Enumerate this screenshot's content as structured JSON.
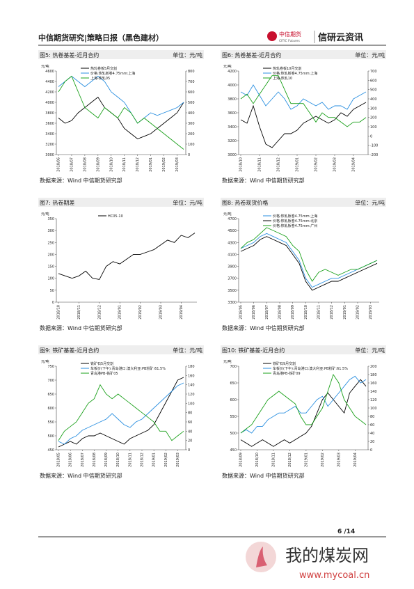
{
  "header": {
    "title": "中信期货研究|策略日报（黑色建材）",
    "logo_cn": "中信期货",
    "logo_en": "CITIC Futures",
    "brand": "信研云资讯"
  },
  "footer": {
    "page": "6 /14"
  },
  "watermark": {
    "cn": "我的煤炭网",
    "url": "www.mycoal.cn"
  },
  "chart_data": [
    {
      "type": "line",
      "title": "图5: 热卷基差-近月合约",
      "unit": "单位：元/吨",
      "y_label": "元/吨",
      "source": "数据来源：Wind  中信期货研究部",
      "categories": [
        "2018/06",
        null,
        "2018/07",
        null,
        "2018/08",
        null,
        "2018/09",
        null,
        "2018/10",
        null,
        "2018/11",
        null,
        "2018/12",
        null,
        "2019/01",
        null,
        "2019/02",
        null,
        "2019/03",
        null
      ],
      "ylim": [
        3000,
        4600
      ],
      "yticks": [
        3000,
        3200,
        3400,
        3600,
        3800,
        4000,
        4200,
        4400,
        4600
      ],
      "y2lim": [
        0,
        800
      ],
      "y2ticks": [
        0,
        100,
        200,
        300,
        400,
        500,
        600,
        700,
        800
      ],
      "series": [
        {
          "name": "热轧卷板5月交割",
          "color": "#000000",
          "values": [
            3700,
            3600,
            3650,
            3800,
            3900,
            4000,
            4100,
            3900,
            3800,
            3700,
            3500,
            3400,
            3300,
            3350,
            3400,
            3500,
            3600,
            3700,
            3800,
            4000
          ]
        },
        {
          "name": "价格:热轧板卷4.75mm:上海",
          "color": "#2a8fe0",
          "values": [
            4300,
            4400,
            4500,
            4400,
            4300,
            4400,
            4500,
            4400,
            4200,
            4100,
            4000,
            3800,
            3600,
            3700,
            3800,
            3750,
            3800,
            3850,
            3900,
            4000
          ]
        },
        {
          "name": "上海-热轧05",
          "color": "#1aa01a",
          "axis": "y2",
          "values": [
            600,
            700,
            750,
            600,
            450,
            400,
            350,
            450,
            400,
            350,
            450,
            400,
            300,
            350,
            300,
            250,
            200,
            150,
            100,
            50
          ]
        }
      ]
    },
    {
      "type": "line",
      "title": "图6: 热卷基差-近月合约",
      "unit": "单位：元/吨",
      "y_label": "元/吨",
      "source": "数据来源：Wind  中信期货研究部",
      "categories": [
        "2018/10",
        null,
        null,
        "2018/11",
        null,
        null,
        "2018/12",
        null,
        null,
        "2019/01",
        null,
        null,
        "2019/02",
        null,
        null,
        "2019/03",
        null,
        null,
        "2019/04",
        null,
        null
      ],
      "ylim": [
        3000,
        4200
      ],
      "yticks": [
        3000,
        3200,
        3400,
        3600,
        3800,
        4000,
        4200
      ],
      "y2lim": [
        -200,
        700
      ],
      "y2ticks": [
        -200,
        -100,
        0,
        100,
        200,
        300,
        400,
        500,
        600,
        700
      ],
      "series": [
        {
          "name": "热轧卷板10月交割",
          "color": "#000000",
          "values": [
            3500,
            3450,
            3700,
            3400,
            3150,
            3100,
            3200,
            3300,
            3300,
            3350,
            3450,
            3500,
            3550,
            3500,
            3450,
            3500,
            3600,
            3550,
            3650,
            3700,
            3750
          ]
        },
        {
          "name": "价格:热轧板卷4.75mm:上海",
          "color": "#2a8fe0",
          "values": [
            3900,
            3850,
            4000,
            3850,
            3700,
            3800,
            3900,
            3800,
            3650,
            3700,
            3800,
            3750,
            3700,
            3750,
            3650,
            3700,
            3700,
            3650,
            3800,
            3850,
            3900
          ]
        },
        {
          "name": "上海-热轧10",
          "color": "#1aa01a",
          "axis": "y2",
          "values": [
            400,
            450,
            350,
            450,
            550,
            650,
            650,
            500,
            350,
            350,
            350,
            250,
            150,
            250,
            200,
            200,
            150,
            100,
            150,
            150,
            200
          ]
        }
      ]
    },
    {
      "type": "line",
      "title": "图7: 热卷期差",
      "unit": "单位：元/吨",
      "y_label": "元/吨",
      "source": "数据来源：Wind  中信期货研究部",
      "categories": [
        "2018/10",
        null,
        null,
        "2018/11",
        null,
        null,
        "2018/12",
        null,
        null,
        "2019/01",
        null,
        null,
        "2019/02",
        null,
        null,
        "2019/03",
        null,
        null,
        "2019/04",
        null,
        null
      ],
      "ylim": [
        0,
        350
      ],
      "yticks": [
        0,
        50,
        100,
        150,
        200,
        250,
        300,
        350
      ],
      "series": [
        {
          "name": "HC05-10",
          "color": "#000000",
          "values": [
            120,
            110,
            100,
            110,
            130,
            100,
            95,
            150,
            170,
            160,
            180,
            200,
            200,
            210,
            220,
            240,
            260,
            250,
            280,
            270,
            290
          ]
        }
      ]
    },
    {
      "type": "line",
      "title": "图8: 热卷现货价格",
      "unit": "单位：元/吨",
      "y_label": "元/吨",
      "source": "数据来源：Wind  中信期货研究部",
      "categories": [
        "2018/05",
        null,
        "2018/06",
        null,
        "2018/07",
        null,
        "2018/08",
        null,
        "2018/09",
        null,
        "2018/10",
        null,
        "2018/11",
        null,
        "2018/12",
        null,
        "2019/01",
        null,
        "2019/02",
        null,
        "2019/03",
        null
      ],
      "ylim": [
        3300,
        4700
      ],
      "yticks": [
        3300,
        3500,
        3700,
        3900,
        4100,
        4300,
        4500,
        4700
      ],
      "series": [
        {
          "name": "价格:热轧板卷4.75mm:上海",
          "color": "#2a8fe0",
          "values": [
            4200,
            4250,
            4300,
            4400,
            4450,
            4400,
            4350,
            4300,
            4150,
            4000,
            3700,
            3550,
            3600,
            3650,
            3700,
            3700,
            3750,
            3800,
            3850,
            3900,
            3950,
            4000
          ]
        },
        {
          "name": "价格:热轧板卷4.75mm:北京",
          "color": "#000000",
          "values": [
            4150,
            4200,
            4250,
            4350,
            4400,
            4350,
            4300,
            4250,
            4100,
            3950,
            3650,
            3500,
            3550,
            3600,
            3650,
            3650,
            3700,
            3750,
            3800,
            3850,
            3900,
            3950
          ]
        },
        {
          "name": "价格:热轧板卷4.75mm:广州",
          "color": "#1aa01a",
          "values": [
            4200,
            4300,
            4350,
            4450,
            4550,
            4500,
            4450,
            4400,
            4250,
            4150,
            3850,
            3650,
            3800,
            3850,
            3800,
            3750,
            3800,
            3850,
            3850,
            3900,
            3950,
            4000
          ]
        }
      ]
    },
    {
      "type": "line",
      "title": "图9: 铁矿基差-近月合约",
      "unit": "单位：元/吨",
      "y_label": "元/吨",
      "source": "数据来源：Wind  中信期货研究部",
      "categories": [
        "2018/05",
        null,
        "2018/06",
        null,
        "2018/07",
        null,
        "2018/08",
        null,
        "2018/09",
        null,
        "2018/10",
        null,
        "2018/11",
        null,
        "2018/12",
        null,
        "2019/01",
        null,
        "2019/02",
        null,
        "2019/03",
        null
      ],
      "ylim": [
        450,
        750
      ],
      "yticks": [
        450,
        500,
        550,
        600,
        650,
        700,
        750
      ],
      "y2lim": [
        0,
        180
      ],
      "y2ticks": [
        0,
        20,
        40,
        60,
        80,
        100,
        120,
        140,
        160,
        180
      ],
      "series": [
        {
          "name": "铁矿石5月交割",
          "color": "#000000",
          "values": [
            460,
            470,
            480,
            470,
            490,
            500,
            500,
            510,
            500,
            490,
            480,
            470,
            490,
            500,
            510,
            520,
            540,
            580,
            620,
            660,
            700,
            710
          ]
        },
        {
          "name": "车板价(下午):青岛港口:澳大利亚:PB粉矿:61.5%",
          "color": "#2a8fe0",
          "values": [
            480,
            470,
            490,
            500,
            520,
            530,
            540,
            550,
            560,
            580,
            560,
            540,
            530,
            550,
            560,
            580,
            600,
            620,
            640,
            660,
            680,
            690
          ]
        },
        {
          "name": "青岛港PB-铁矿05",
          "color": "#1aa01a",
          "axis": "y2",
          "values": [
            20,
            40,
            50,
            60,
            80,
            100,
            110,
            140,
            120,
            110,
            120,
            110,
            100,
            90,
            80,
            70,
            60,
            40,
            40,
            20,
            30,
            40
          ]
        }
      ]
    },
    {
      "type": "line",
      "title": "图10: 铁矿基差-近月合约",
      "unit": "单位：元/吨",
      "y_label": "元/吨",
      "source": "数据来源：Wind  中信期货研究部",
      "categories": [
        "2018/09",
        null,
        null,
        "2018/10",
        null,
        null,
        "2018/11",
        null,
        null,
        "2018/12",
        null,
        null,
        "2019/01",
        null,
        null,
        "2019/02",
        null,
        null,
        "2019/03",
        null,
        null,
        "2019/04",
        null,
        null
      ],
      "ylim": [
        450,
        700
      ],
      "yticks": [
        450,
        500,
        550,
        600,
        650,
        700
      ],
      "y2lim": [
        0,
        200
      ],
      "y2ticks": [
        0,
        20,
        40,
        60,
        80,
        100,
        120,
        140,
        160,
        180,
        200
      ],
      "series": [
        {
          "name": "铁矿石9月交割",
          "color": "#000000",
          "values": [
            480,
            470,
            460,
            470,
            480,
            470,
            460,
            470,
            480,
            470,
            480,
            490,
            500,
            520,
            560,
            600,
            620,
            600,
            580,
            560,
            620,
            640,
            660,
            640
          ]
        },
        {
          "name": "车板价(下午):青岛港口:澳大利亚:PB粉矿:61.5%",
          "color": "#2a8fe0",
          "values": [
            500,
            510,
            500,
            520,
            520,
            540,
            550,
            560,
            560,
            570,
            580,
            560,
            560,
            580,
            600,
            610,
            580,
            600,
            620,
            640,
            660,
            670,
            650,
            660
          ]
        },
        {
          "name": "青岛港PB-铁矿09",
          "color": "#1aa01a",
          "axis": "y2",
          "values": [
            40,
            50,
            60,
            80,
            100,
            120,
            130,
            140,
            130,
            120,
            110,
            80,
            60,
            60,
            80,
            100,
            140,
            180,
            160,
            120,
            100,
            80,
            70,
            60
          ]
        }
      ]
    }
  ]
}
